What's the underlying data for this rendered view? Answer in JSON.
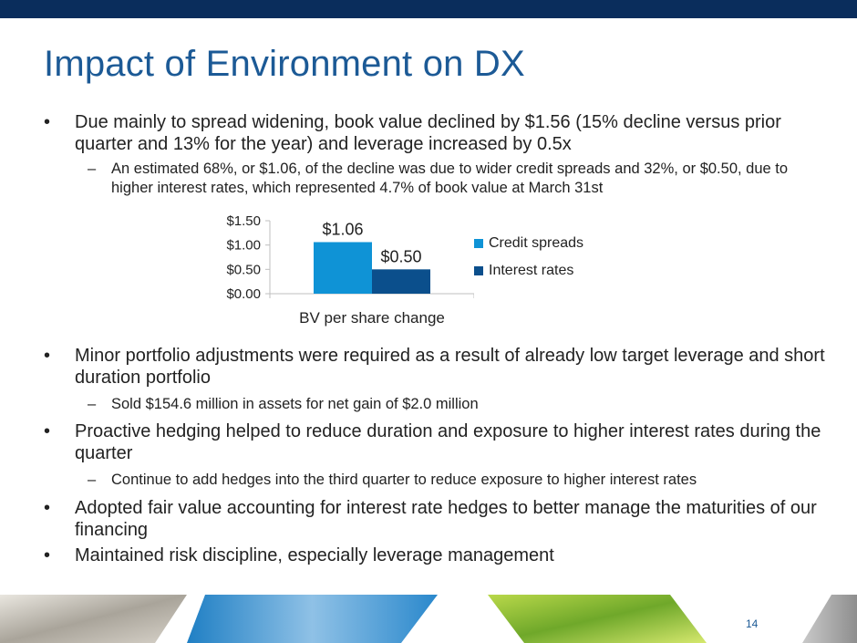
{
  "slide": {
    "title": "Impact of Environment on DX",
    "page_number": "14",
    "bullet_glyph": "•",
    "dash_glyph": "–"
  },
  "bullets_top": {
    "b1": "Due mainly to spread widening, book value declined by $1.56 (15% decline versus prior quarter and 13% for the year) and leverage increased by 0.5x",
    "b1_sub": "An estimated 68%, or $1.06, of the decline was due to wider credit spreads and 32%, or $0.50, due to higher interest rates, which represented 4.7% of book value at March 31st"
  },
  "bullets_bottom": {
    "b2": "Minor portfolio adjustments were required as a result of already low target leverage and short duration portfolio",
    "b2_sub": "Sold $154.6 million in assets for net gain of $2.0 million",
    "b3": "Proactive hedging helped to reduce duration and exposure to higher interest rates during the quarter",
    "b3_sub": "Continue to add hedges into the third quarter to reduce exposure to higher interest rates",
    "b4": "Adopted fair value accounting for interest rate hedges to better manage the maturities of our financing",
    "b5": "Maintained risk discipline, especially leverage management"
  },
  "chart_data": {
    "type": "bar",
    "categories": [
      "BV per share change"
    ],
    "series": [
      {
        "name": "Credit spreads",
        "values": [
          1.06
        ],
        "label": "$1.06",
        "color": "#0f93d6"
      },
      {
        "name": "Interest rates",
        "values": [
          0.5
        ],
        "label": "$0.50",
        "color": "#0b4f8c"
      }
    ],
    "yticks": [
      "$0.00",
      "$0.50",
      "$1.00",
      "$1.50"
    ],
    "ytick_values": [
      0,
      0.5,
      1.0,
      1.5
    ],
    "ylim": [
      0,
      1.5
    ],
    "legend_position": "right",
    "grid": false,
    "title": "",
    "xlabel": "",
    "ylabel": ""
  }
}
